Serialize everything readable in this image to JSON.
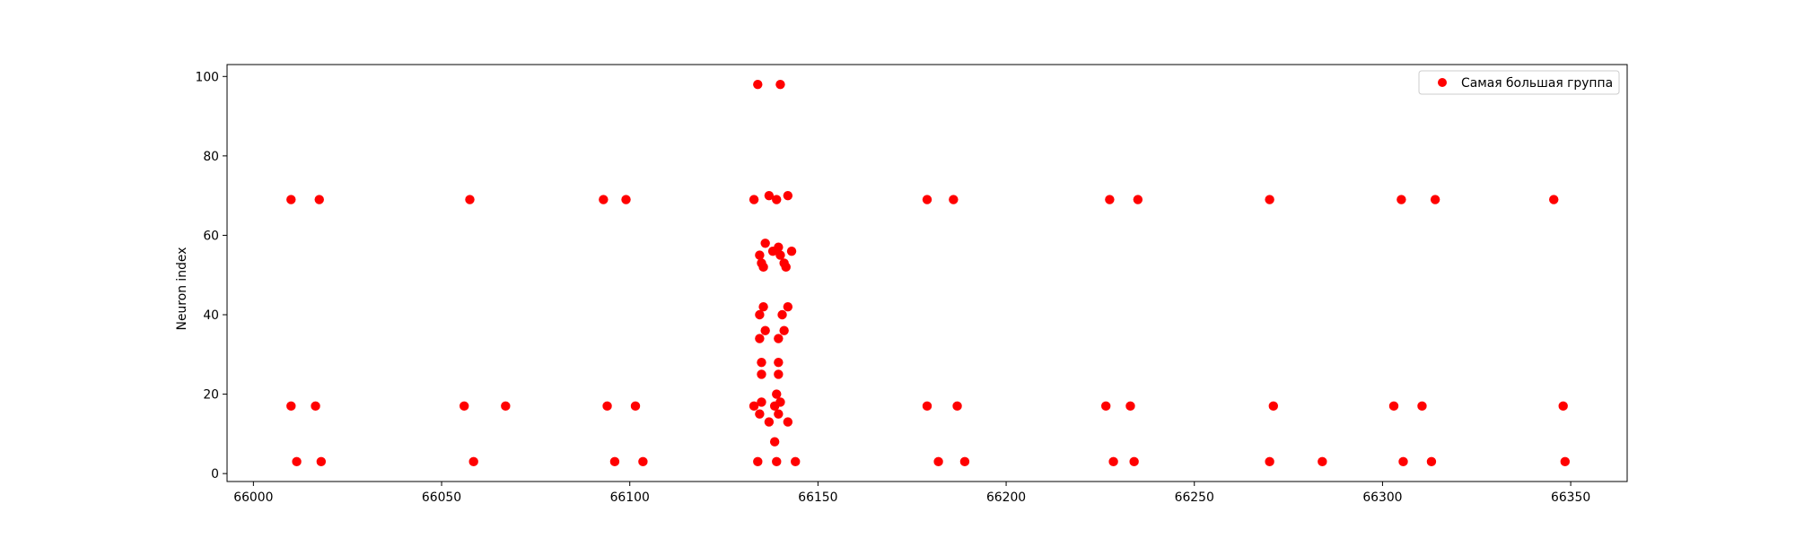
{
  "chart_data": {
    "type": "scatter",
    "title": "",
    "xlabel": "",
    "ylabel": "Neuron index",
    "xlim": [
      65993,
      66365
    ],
    "ylim": [
      -2,
      103
    ],
    "xticks": [
      66000,
      66050,
      66100,
      66150,
      66200,
      66250,
      66300,
      66350
    ],
    "yticks": [
      0,
      20,
      40,
      60,
      80,
      100
    ],
    "grid": false,
    "legend_position": "top-right",
    "marker_color": "#ff0000",
    "series": [
      {
        "name": "Самая большая группа",
        "color": "#ff0000",
        "points": [
          [
            66010,
            69
          ],
          [
            66017.5,
            69
          ],
          [
            66057.5,
            69
          ],
          [
            66093,
            69
          ],
          [
            66099,
            69
          ],
          [
            66133,
            69
          ],
          [
            66137,
            70
          ],
          [
            66139,
            69
          ],
          [
            66142,
            70
          ],
          [
            66179,
            69
          ],
          [
            66186,
            69
          ],
          [
            66227.5,
            69
          ],
          [
            66235,
            69
          ],
          [
            66270,
            69
          ],
          [
            66305,
            69
          ],
          [
            66314,
            69
          ],
          [
            66345.5,
            69
          ],
          [
            66134,
            98
          ],
          [
            66140,
            98
          ],
          [
            66136,
            58
          ],
          [
            66134.5,
            55
          ],
          [
            66138,
            56
          ],
          [
            66139.5,
            57
          ],
          [
            66143,
            56
          ],
          [
            66140,
            55
          ],
          [
            66135,
            53
          ],
          [
            66135.5,
            52
          ],
          [
            66141,
            53
          ],
          [
            66141.5,
            52
          ],
          [
            66135.5,
            42
          ],
          [
            66142,
            42
          ],
          [
            66134.5,
            40
          ],
          [
            66140.5,
            40
          ],
          [
            66136,
            36
          ],
          [
            66141,
            36
          ],
          [
            66134.5,
            34
          ],
          [
            66139.5,
            34
          ],
          [
            66135,
            28
          ],
          [
            66139.5,
            28
          ],
          [
            66135,
            25
          ],
          [
            66139.5,
            25
          ],
          [
            66139,
            20
          ],
          [
            66133,
            17
          ],
          [
            66135,
            18
          ],
          [
            66138.5,
            17
          ],
          [
            66140,
            18
          ],
          [
            66134.5,
            15
          ],
          [
            66139.5,
            15
          ],
          [
            66137,
            13
          ],
          [
            66142,
            13
          ],
          [
            66138.5,
            8
          ],
          [
            66010,
            17
          ],
          [
            66016.5,
            17
          ],
          [
            66056,
            17
          ],
          [
            66067,
            17
          ],
          [
            66094,
            17
          ],
          [
            66101.5,
            17
          ],
          [
            66179,
            17
          ],
          [
            66187,
            17
          ],
          [
            66226.5,
            17
          ],
          [
            66233,
            17
          ],
          [
            66271,
            17
          ],
          [
            66303,
            17
          ],
          [
            66310.5,
            17
          ],
          [
            66348,
            17
          ],
          [
            66011.5,
            3
          ],
          [
            66018,
            3
          ],
          [
            66058.5,
            3
          ],
          [
            66096,
            3
          ],
          [
            66103.5,
            3
          ],
          [
            66134,
            3
          ],
          [
            66139,
            3
          ],
          [
            66144,
            3
          ],
          [
            66182,
            3
          ],
          [
            66189,
            3
          ],
          [
            66228.5,
            3
          ],
          [
            66234,
            3
          ],
          [
            66270,
            3
          ],
          [
            66284,
            3
          ],
          [
            66305.5,
            3
          ],
          [
            66313,
            3
          ],
          [
            66348.5,
            3
          ]
        ]
      }
    ]
  }
}
